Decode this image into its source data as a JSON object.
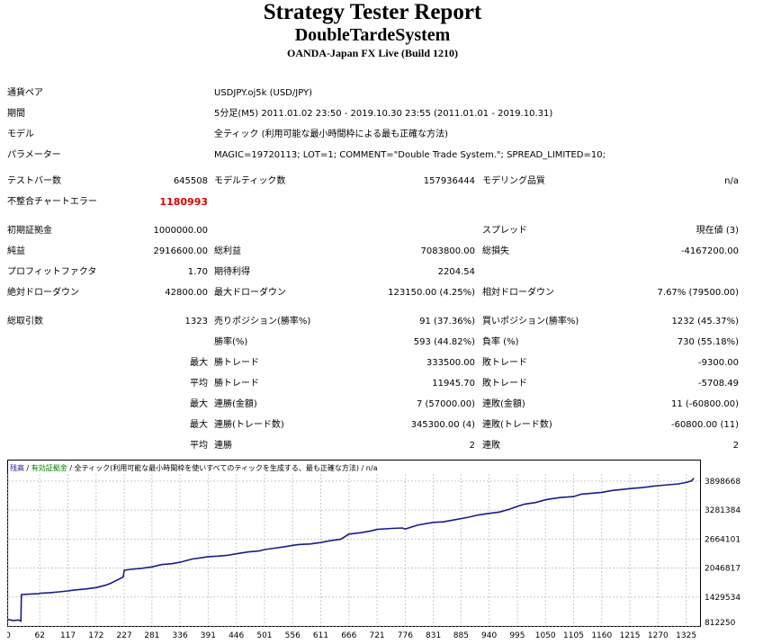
{
  "header": {
    "title": "Strategy Tester Report",
    "subtitle": "DoubleTardeSystem",
    "server": "OANDA-Japan FX Live (Build 1210)"
  },
  "info": {
    "symbol_label": "通貨ペア",
    "symbol_value": "USDJPY.oj5k (USD/JPY)",
    "period_label": "期間",
    "period_value": "5分足(M5) 2011.01.02 23:50 - 2019.10.30 23:55 (2011.01.01 - 2019.10.31)",
    "model_label": "モデル",
    "model_value": "全ティック (利用可能な最小時間枠による最も正確な方法)",
    "params_label": "パラメーター",
    "params_value": "MAGIC=19720113; LOT=1; COMMENT=\"Double Trade System.\"; SPREAD_LIMITED=10;"
  },
  "bars": {
    "bars_label": "テストバー数",
    "bars_value": "645508",
    "ticks_label": "モデルティック数",
    "ticks_value": "157936444",
    "quality_label": "モデリング品質",
    "quality_value": "n/a",
    "errors_label": "不整合チャートエラー",
    "errors_value": "1180993"
  },
  "summary": {
    "deposit_label": "初期証拠金",
    "deposit_value": "1000000.00",
    "spread_label": "スプレッド",
    "spread_value": "現在値 (3)",
    "net_label": "純益",
    "net_value": "2916600.00",
    "gross_profit_label": "総利益",
    "gross_profit_value": "7083800.00",
    "gross_loss_label": "総損失",
    "gross_loss_value": "-4167200.00",
    "pf_label": "プロフィットファクタ",
    "pf_value": "1.70",
    "expected_label": "期待利得",
    "expected_value": "2204.54",
    "abs_dd_label": "絶対ドローダウン",
    "abs_dd_value": "42800.00",
    "max_dd_label": "最大ドローダウン",
    "max_dd_value": "123150.00 (4.25%)",
    "rel_dd_label": "相対ドローダウン",
    "rel_dd_value": "7.67% (79500.00)"
  },
  "trades": {
    "total_label": "総取引数",
    "total_value": "1323",
    "short_label": "売りポジション(勝率%)",
    "short_value": "91 (37.36%)",
    "long_label": "買いポジション(勝率%)",
    "long_value": "1232 (45.37%)",
    "win_label": "勝率(%)",
    "win_value": "593 (44.82%)",
    "loss_label": "負率 (%)",
    "loss_value": "730 (55.18%)",
    "max_label": "最大",
    "avg_label": "平均",
    "win_trade_label": "勝トレード",
    "loss_trade_label": "敗トレード",
    "largest_win": "333500.00",
    "largest_loss": "-9300.00",
    "avg_win": "11945.70",
    "avg_loss": "-5708.49",
    "cons_win_money_label": "連勝(金額)",
    "cons_loss_money_label": "連敗(金額)",
    "max_cons_win_money": "7 (57000.00)",
    "max_cons_loss_money": "11 (-60800.00)",
    "cons_win_trades_label": "連勝(トレード数)",
    "cons_loss_trades_label": "連敗(トレード数)",
    "max_cons_win_trades": "345300.00 (4)",
    "max_cons_loss_trades": "-60800.00 (11)",
    "cons_win_label": "連勝",
    "cons_loss_label": "連敗",
    "avg_cons_win": "2",
    "avg_cons_loss": "2"
  },
  "colors": {
    "balance_line": "#1a1a8c",
    "error_red": "#e00000",
    "legend_green": "#008000"
  },
  "chart_data": {
    "type": "line",
    "legend": [
      "残高",
      "有効証拠金",
      "全ティック(利用可能な最小時間枠を使いすべてのティックを生成する、最も正確な方法)",
      "n/a"
    ],
    "x_ticks": [
      "0",
      "62",
      "117",
      "172",
      "227",
      "281",
      "336",
      "391",
      "446",
      "501",
      "556",
      "611",
      "666",
      "721",
      "776",
      "831",
      "885",
      "940",
      "995",
      "1050",
      "1105",
      "1160",
      "1215",
      "1270",
      "1325"
    ],
    "y_ticks": [
      "3898668",
      "3281384",
      "2664101",
      "2046817",
      "1429534",
      "812250"
    ],
    "ylim": [
      812250,
      4050000
    ],
    "xlim": [
      0,
      1345
    ],
    "series": [
      {
        "x": [
          0,
          10,
          20,
          25,
          26,
          40,
          60,
          62,
          80,
          100,
          117,
          130,
          150,
          172,
          190,
          200,
          215,
          225,
          227,
          240,
          260,
          281,
          300,
          320,
          336,
          360,
          380,
          391,
          410,
          430,
          446,
          470,
          490,
          501,
          520,
          540,
          556,
          570,
          590,
          611,
          630,
          650,
          666,
          690,
          710,
          721,
          750,
          770,
          776,
          800,
          820,
          831,
          850,
          870,
          885,
          900,
          920,
          940,
          960,
          980,
          995,
          1010,
          1030,
          1050,
          1060,
          1080,
          1105,
          1120,
          1140,
          1160,
          1180,
          1200,
          1215,
          1240,
          1260,
          1270,
          1290,
          1310,
          1325,
          1335,
          1340
        ],
        "y": [
          950000,
          930000,
          940000,
          920000,
          1480000,
          1490000,
          1500000,
          1510000,
          1520000,
          1540000,
          1560000,
          1580000,
          1600000,
          1630000,
          1680000,
          1720000,
          1800000,
          1860000,
          2000000,
          2020000,
          2040000,
          2070000,
          2120000,
          2140000,
          2170000,
          2240000,
          2270000,
          2290000,
          2300000,
          2320000,
          2350000,
          2390000,
          2410000,
          2440000,
          2470000,
          2500000,
          2530000,
          2550000,
          2560000,
          2590000,
          2630000,
          2660000,
          2770000,
          2800000,
          2840000,
          2870000,
          2890000,
          2900000,
          2880000,
          2960000,
          3000000,
          3020000,
          3030000,
          3070000,
          3100000,
          3130000,
          3180000,
          3210000,
          3240000,
          3300000,
          3360000,
          3410000,
          3440000,
          3500000,
          3520000,
          3550000,
          3570000,
          3620000,
          3640000,
          3660000,
          3700000,
          3720000,
          3740000,
          3760000,
          3790000,
          3800000,
          3820000,
          3840000,
          3870000,
          3900000,
          3960000
        ]
      }
    ]
  }
}
